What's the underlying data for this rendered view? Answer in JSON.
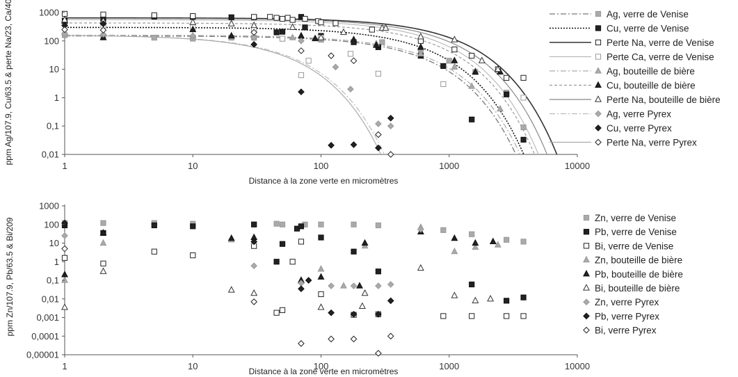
{
  "chart_data": [
    {
      "type": "scatter",
      "log_x": true,
      "log_y": true,
      "xlabel": "Distance à la zone verte en micromètres",
      "ylabel": "ppm Ag/107.9, Cu/63.5 & perte Na/23, Ca/40",
      "xlim": [
        1,
        10000
      ],
      "ylim": [
        0.01,
        1000
      ],
      "x_ticks": [
        "1",
        "10",
        "100",
        "1000",
        "10000"
      ],
      "y_ticks": [
        "0,01",
        "0,1",
        "1",
        "10",
        "100",
        "1000"
      ],
      "legend_position": "right",
      "grid": false,
      "series": [
        {
          "name": "Ag, verre de Venise",
          "marker": "square",
          "fill": "#aaaaaa",
          "stroke": "#999999",
          "x": [
            1,
            2,
            5,
            10,
            20,
            30,
            50,
            100,
            300,
            600,
            1000,
            1600,
            2800,
            3800
          ],
          "y": [
            160,
            140,
            130,
            120,
            130,
            130,
            120,
            110,
            90,
            40,
            20,
            8,
            1.5,
            0.09
          ]
        },
        {
          "name": "Cu, verre de Venise",
          "marker": "square",
          "fill": "#222222",
          "stroke": "#111111",
          "x": [
            1,
            2,
            5,
            10,
            20,
            30,
            45,
            50,
            70,
            75,
            100,
            180,
            280,
            600,
            900,
            1500,
            2800,
            3800
          ],
          "y": [
            520,
            600,
            720,
            700,
            680,
            680,
            200,
            210,
            700,
            300,
            150,
            90,
            60,
            30,
            13,
            0.17,
            1.3,
            0.033
          ]
        },
        {
          "name": "Perte Na, verre de Venise",
          "marker": "square-open",
          "fill": "#ffffff",
          "stroke": "#222222",
          "x": [
            1,
            2,
            5,
            10,
            30,
            40,
            45,
            50,
            55,
            60,
            75,
            95,
            100,
            130,
            250,
            600,
            1100,
            1500,
            2400,
            2800,
            3800
          ],
          "y": [
            900,
            850,
            800,
            750,
            700,
            700,
            650,
            600,
            650,
            550,
            600,
            500,
            450,
            420,
            250,
            100,
            50,
            30,
            10,
            5,
            5
          ]
        },
        {
          "name": "Perte Ca, verre de Venise",
          "marker": "square-open",
          "fill": "#ffffff",
          "stroke": "#999999",
          "x": [
            1,
            2,
            10,
            30,
            50,
            70,
            80,
            100,
            170,
            280,
            900,
            3800
          ],
          "y": [
            400,
            350,
            300,
            250,
            120,
            6.2,
            20,
            130,
            35,
            7,
            3,
            1
          ]
        },
        {
          "name": "Ag, bouteille de bière",
          "marker": "triangle",
          "fill": "#aaaaaa",
          "stroke": "#999999",
          "x": [
            1,
            2,
            10,
            20,
            60,
            90,
            180,
            270,
            600,
            1100,
            1500,
            2500
          ],
          "y": [
            200,
            180,
            150,
            140,
            130,
            120,
            110,
            80,
            35,
            12,
            2.5,
            0.4
          ]
        },
        {
          "name": "Cu, bouteille de bière",
          "marker": "triangle",
          "fill": "#222222",
          "stroke": "#111111",
          "x": [
            1,
            2,
            10,
            20,
            70,
            90,
            180,
            270,
            600,
            1100,
            1600,
            2500
          ],
          "y": [
            500,
            130,
            250,
            150,
            150,
            120,
            110,
            70,
            60,
            20,
            8,
            8
          ]
        },
        {
          "name": "Perte Na, bouteille de bière",
          "marker": "triangle-open",
          "fill": "#ffffff",
          "stroke": "#333333",
          "x": [
            1,
            2,
            10,
            20,
            30,
            60,
            100,
            150,
            300,
            320,
            600,
            1100,
            1800,
            2400
          ],
          "y": [
            550,
            500,
            450,
            400,
            350,
            300,
            130,
            200,
            280,
            280,
            140,
            110,
            20,
            10
          ]
        },
        {
          "name": "Ag, verre Pyrex",
          "marker": "diamond",
          "fill": "#aaaaaa",
          "stroke": "#999999",
          "x": [
            1,
            2,
            10,
            30,
            70,
            130,
            170,
            280,
            350
          ],
          "y": [
            180,
            170,
            150,
            130,
            100,
            12,
            2,
            0.12,
            0.1
          ]
        },
        {
          "name": "Cu, verre Pyrex",
          "marker": "diamond",
          "fill": "#222222",
          "stroke": "#111111",
          "x": [
            1,
            2,
            30,
            70,
            120,
            180,
            280,
            350
          ],
          "y": [
            350,
            400,
            75,
            1.6,
            0.021,
            0.022,
            0.017,
            0.19
          ]
        },
        {
          "name": "Perte Na, verre Pyrex",
          "marker": "diamond-open",
          "fill": "#ffffff",
          "stroke": "#222222",
          "x": [
            1,
            2,
            30,
            70,
            120,
            180,
            280,
            350
          ],
          "y": [
            250,
            240,
            200,
            45,
            30,
            20,
            0.05,
            0.01
          ]
        }
      ],
      "trend_lines": [
        {
          "legend": "Ag, verre de Venise",
          "style": "dashdot",
          "color": "#777777",
          "width": 1.3,
          "a": 150,
          "b": 0.0029
        },
        {
          "legend": "Cu, verre de Venise",
          "style": "dotted",
          "color": "#111111",
          "width": 1.6,
          "a": 300,
          "b": 0.0027
        },
        {
          "legend": "Perte Na, verre de Venise",
          "style": "solid",
          "color": "#333333",
          "width": 1.6,
          "a": 650,
          "b": 0.0016
        },
        {
          "legend": "Perte Ca, verre de Venise",
          "style": "solid",
          "color": "#bbbbbb",
          "width": 1.2,
          "a": 560,
          "b": 0.0022
        },
        {
          "legend": "Ag, bouteille de bière",
          "style": "dashdot",
          "color": "#aaaaaa",
          "width": 1.2,
          "a": 160,
          "b": 0.0027
        },
        {
          "legend": "Cu, bouteille de bière",
          "style": "dashed",
          "color": "#999999",
          "width": 1.2,
          "a": 430,
          "b": 0.0023
        },
        {
          "legend": "Perte Na, bouteille de bière",
          "style": "solid",
          "color": "#888888",
          "width": 1.2,
          "a": 620,
          "b": 0.0019
        },
        {
          "legend": "Ag, verre Pyrex",
          "style": "dashdot",
          "color": "#bbbbbb",
          "width": 1.2,
          "a": 160,
          "b": 0.031
        },
        {
          "legend": "Cu, verre Pyrex",
          "style": "none"
        },
        {
          "legend": "Perte Na, verre Pyrex",
          "style": "solid",
          "color": "#aaaaaa",
          "width": 1.2,
          "a": 160,
          "b": 0.033
        }
      ]
    },
    {
      "type": "scatter",
      "log_x": true,
      "log_y": true,
      "xlabel": "Distance à la zone verte en micromètres",
      "ylabel": "ppm Zn/107.9,  Pb/63.5 & Bi/209",
      "xlim": [
        1,
        10000
      ],
      "ylim": [
        1e-05,
        1000
      ],
      "x_ticks": [
        "1",
        "10",
        "100",
        "1000",
        "10000"
      ],
      "y_ticks": [
        "0,00001",
        "0,0001",
        "0,001",
        "0,01",
        "0,1",
        "1",
        "10",
        "100",
        "1000"
      ],
      "legend_position": "right",
      "grid": false,
      "series": [
        {
          "name": "Zn, verre de Venise",
          "marker": "square",
          "fill": "#aaaaaa",
          "stroke": "#999999",
          "x": [
            1,
            2,
            5,
            10,
            30,
            45,
            50,
            75,
            100,
            180,
            280,
            900,
            1500,
            2800,
            3800
          ],
          "y": [
            120,
            120,
            120,
            110,
            100,
            110,
            100,
            100,
            100,
            100,
            90,
            50,
            30,
            15,
            12
          ]
        },
        {
          "name": "Pb, verre de Venise",
          "marker": "square",
          "fill": "#222222",
          "stroke": "#111111",
          "x": [
            1,
            2,
            5,
            10,
            30,
            45,
            50,
            65,
            70,
            100,
            180,
            280,
            1500,
            2800,
            3800
          ],
          "y": [
            90,
            35,
            90,
            80,
            100,
            1,
            9,
            60,
            80,
            20,
            3.5,
            0.3,
            0.06,
            0.008,
            0.012
          ]
        },
        {
          "name": "Bi, verre de Venise",
          "marker": "square-open",
          "fill": "#ffffff",
          "stroke": "#222222",
          "x": [
            1,
            2,
            5,
            10,
            30,
            45,
            50,
            60,
            70,
            100,
            180,
            280,
            900,
            1500,
            2800,
            3800
          ],
          "y": [
            1.6,
            0.8,
            3.5,
            2.2,
            7,
            0.0018,
            0.0025,
            1,
            12,
            0.018,
            0.0014,
            0.0015,
            0.0012,
            0.0012,
            0.0012,
            0.0012
          ]
        },
        {
          "name": "Zn, bouteille de bière",
          "marker": "triangle",
          "fill": "#aaaaaa",
          "stroke": "#999999",
          "x": [
            1,
            2,
            20,
            30,
            70,
            100,
            150,
            220,
            600,
            1100,
            1600,
            2400
          ],
          "y": [
            0.1,
            10,
            15,
            12,
            0.1,
            0.4,
            0.05,
            7,
            70,
            3.5,
            6,
            8
          ]
        },
        {
          "name": "Pb, bouteille de bière",
          "marker": "triangle",
          "fill": "#222222",
          "stroke": "#111111",
          "x": [
            1,
            2,
            20,
            30,
            70,
            100,
            200,
            220,
            600,
            1100,
            1600,
            2200
          ],
          "y": [
            0.2,
            35,
            18,
            20,
            0.1,
            0.15,
            0.05,
            10,
            40,
            18,
            10,
            12
          ]
        },
        {
          "name": "Bi, bouteille de bière",
          "marker": "triangle-open",
          "fill": "#ffffff",
          "stroke": "#333333",
          "x": [
            1,
            2,
            20,
            30,
            100,
            210,
            220,
            600,
            1100,
            1600,
            2100
          ],
          "y": [
            0.0035,
            0.3,
            0.03,
            0.02,
            0.0035,
            0.004,
            0.02,
            0.45,
            0.015,
            0.008,
            0.01
          ]
        },
        {
          "name": "Zn, verre Pyrex",
          "marker": "diamond",
          "fill": "#aaaaaa",
          "stroke": "#999999",
          "x": [
            1,
            30,
            70,
            120,
            180,
            280,
            350,
            600
          ],
          "y": [
            25,
            0.6,
            0.07,
            0.05,
            0.05,
            0.05,
            0.06,
            55
          ]
        },
        {
          "name": "Pb, verre Pyrex",
          "marker": "diamond",
          "fill": "#222222",
          "stroke": "#111111",
          "x": [
            1,
            30,
            70,
            80,
            120,
            180,
            280,
            350
          ],
          "y": [
            120,
            12,
            0.035,
            0.1,
            0.0018,
            0.0015,
            0.0015,
            0.008
          ]
        },
        {
          "name": "Bi, verre Pyrex",
          "marker": "diamond-open",
          "fill": "#ffffff",
          "stroke": "#222222",
          "x": [
            1,
            30,
            70,
            120,
            180,
            280,
            350
          ],
          "y": [
            5,
            0.007,
            4e-05,
            7e-05,
            7e-05,
            1.2e-05,
            0.0001
          ]
        }
      ]
    }
  ]
}
